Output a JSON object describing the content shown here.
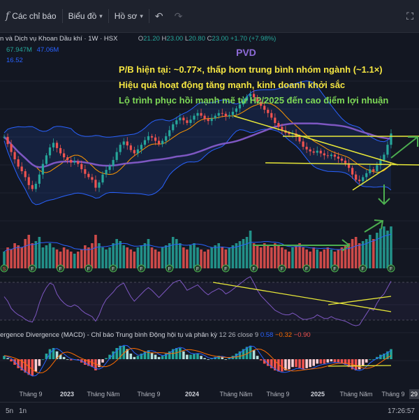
{
  "toolbar": {
    "indicators_label": "Các chỉ báo",
    "chart_type_label": "Biểu đồ",
    "profile_label": "Hồ sơ"
  },
  "legend": {
    "symbol_title": "n và Dịch vụ Khoan Dầu khí · 1W · HSX",
    "o_label": "O",
    "o_value": "21.20",
    "h_label": "H",
    "h_value": "23.00",
    "l_label": "L",
    "l_value": "20.80",
    "c_label": "C",
    "c_value": "23.00",
    "change": "+1.70 (+7.98%)",
    "vol_1": "67.947M",
    "vol_2": "47.06M",
    "ma_value": "16.52"
  },
  "annotations": {
    "ticker": "PVD",
    "line_1": "P/B hiện tại: ~0.77×, thấp hơn trung bình nhóm ngành (~1.1×)",
    "line_2": "Hiệu quả hoạt động tăng mạnh, kinh doanh khởi sắc",
    "line_3": "Lộ trình phục hồi mạnh mẽ từ H2/2025 đến cao điểm lợi nhuận"
  },
  "macd_legend": {
    "title": "ergence Divergence (MACD) - Chỉ báo Trung bình Động hội tụ và phân kỳ",
    "params": "12 26 close 9",
    "v1": "0.58",
    "v2": "−0.32",
    "v3": "−0.90"
  },
  "event_markers": [
    "S",
    "F",
    "F",
    "F",
    "F",
    "F",
    "F",
    "F",
    "F",
    "F",
    "F",
    "F",
    "F",
    "F",
    "F"
  ],
  "time_axis": [
    "Tháng 9",
    "2023",
    "Tháng Năm",
    "Tháng 9",
    "2024",
    "Tháng Năm",
    "Tháng 9",
    "2025",
    "Tháng Năm",
    "Tháng 9"
  ],
  "bottombar": {
    "range_5d": "5n",
    "range_1m": "1n",
    "clock": "17:26:57"
  },
  "price_tags": [
    "29"
  ],
  "colors": {
    "up": "#26a69a",
    "down": "#ef5350",
    "bb_line": "#2962ff",
    "bb_fill": "#1c3a7a",
    "ma_long": "#7e57c2",
    "ma_short": "#ff9800",
    "trend_line": "#e8e838",
    "green_arrow": "#4caf50",
    "ticker_color": "#8e6bd8",
    "text_yellow": "#f5e642",
    "text_green": "#7ed957"
  },
  "chart_data": {
    "type": "candlestick",
    "timeframe": "1W",
    "price_range": [
      10,
      32
    ],
    "close_series": [
      22.5,
      21.4,
      20.2,
      19.1,
      18.0,
      17.3,
      16.4,
      15.2,
      14.6,
      15.4,
      16.8,
      18.4,
      19.7,
      20.9,
      21.6,
      20.8,
      20.0,
      19.4,
      19.0,
      18.6,
      18.8,
      18.4,
      17.6,
      16.9,
      16.4,
      16.0,
      14.8,
      15.6,
      16.8,
      17.5,
      18.1,
      19.0,
      20.2,
      21.3,
      21.8,
      21.2,
      20.5,
      20.0,
      20.6,
      21.3,
      22.0,
      22.6,
      22.4,
      21.9,
      21.4,
      21.9,
      22.6,
      23.5,
      24.4,
      25.0,
      25.4,
      25.0,
      24.6,
      25.1,
      25.7,
      26.1,
      25.7,
      25.2,
      24.9,
      25.3,
      25.7,
      26.1,
      26.0,
      25.6,
      25.8,
      26.3,
      26.8,
      27.4,
      28.0,
      28.6,
      29.0,
      28.5,
      27.8,
      27.2,
      26.6,
      26.1,
      25.4,
      24.6,
      24.0,
      23.5,
      23.1,
      22.9,
      23.0,
      22.5,
      21.8,
      21.0,
      20.6,
      20.3,
      20.1,
      20.4,
      20.0,
      19.7,
      19.6,
      19.8,
      19.5,
      19.2,
      18.9,
      18.5,
      17.8,
      16.8,
      16.0,
      15.8,
      16.4,
      17.0,
      17.6,
      17.3,
      18.2,
      19.0,
      19.8,
      21.3,
      23.0
    ],
    "volume_series": [
      0.4,
      0.5,
      0.45,
      0.6,
      0.55,
      0.5,
      0.7,
      0.8,
      0.6,
      0.65,
      0.75,
      0.5,
      0.55,
      0.6,
      0.5,
      0.45,
      0.4,
      0.5,
      0.45,
      0.4,
      0.35,
      0.4,
      0.45,
      0.55,
      0.5,
      0.6,
      0.8,
      0.6,
      0.5,
      0.45,
      0.5,
      0.6,
      0.7,
      0.65,
      0.55,
      0.5,
      0.45,
      0.4,
      0.5,
      0.55,
      0.6,
      0.7,
      0.5,
      0.45,
      0.4,
      0.5,
      0.55,
      0.6,
      0.75,
      0.7,
      0.6,
      0.5,
      0.45,
      0.55,
      0.6,
      0.5,
      0.45,
      0.4,
      0.45,
      0.5,
      0.55,
      0.6,
      0.5,
      0.45,
      0.5,
      0.55,
      0.6,
      0.65,
      0.7,
      0.75,
      0.9,
      0.6,
      0.55,
      0.5,
      0.6,
      0.55,
      0.5,
      0.6,
      0.55,
      0.5,
      0.45,
      0.4,
      0.5,
      0.55,
      0.6,
      0.5,
      0.45,
      0.4,
      0.5,
      0.45,
      0.4,
      0.45,
      0.5,
      0.45,
      0.4,
      0.45,
      0.5,
      0.55,
      0.6,
      0.7,
      0.75,
      0.6,
      0.65,
      0.7,
      0.8,
      0.7,
      0.85,
      0.95,
      1.0,
      0.9,
      1.0
    ],
    "rsi_series": [
      55,
      50,
      42,
      38,
      35,
      33,
      30,
      28,
      27,
      35,
      48,
      58,
      65,
      70,
      68,
      58,
      52,
      48,
      45,
      44,
      46,
      44,
      40,
      37,
      35,
      33,
      28,
      35,
      45,
      52,
      56,
      60,
      65,
      68,
      70,
      62,
      55,
      50,
      54,
      58,
      62,
      65,
      62,
      58,
      54,
      58,
      62,
      66,
      70,
      72,
      73,
      68,
      62,
      64,
      66,
      68,
      64,
      60,
      57,
      60,
      62,
      64,
      62,
      58,
      60,
      63,
      66,
      69,
      72,
      75,
      77,
      70,
      62,
      56,
      52,
      48,
      44,
      40,
      38,
      36,
      35,
      35,
      37,
      35,
      32,
      30,
      30,
      31,
      32,
      35,
      33,
      31,
      31,
      33,
      31,
      30,
      29,
      28,
      26,
      24,
      23,
      24,
      30,
      36,
      42,
      40,
      48,
      54,
      58,
      65,
      72
    ],
    "macd_hist": [
      0.3,
      0.1,
      -0.2,
      -0.5,
      -0.8,
      -1.0,
      -1.2,
      -1.4,
      -1.5,
      -1.1,
      -0.6,
      0.0,
      0.5,
      0.9,
      1.0,
      0.7,
      0.4,
      0.2,
      0.0,
      -0.1,
      0.0,
      -0.1,
      -0.3,
      -0.5,
      -0.6,
      -0.7,
      -1.0,
      -0.7,
      -0.3,
      0.1,
      0.4,
      0.7,
      1.0,
      1.2,
      1.2,
      0.9,
      0.5,
      0.2,
      0.3,
      0.5,
      0.7,
      0.8,
      0.6,
      0.4,
      0.2,
      0.3,
      0.5,
      0.7,
      0.9,
      1.0,
      1.0,
      0.7,
      0.4,
      0.4,
      0.5,
      0.5,
      0.3,
      0.1,
      0.0,
      0.1,
      0.2,
      0.3,
      0.2,
      0.0,
      0.1,
      0.3,
      0.5,
      0.7,
      0.9,
      1.1,
      1.2,
      0.8,
      0.3,
      -0.1,
      -0.4,
      -0.6,
      -0.8,
      -1.0,
      -1.1,
      -1.1,
      -1.0,
      -0.9,
      -0.7,
      -0.7,
      -0.8,
      -0.9,
      -0.8,
      -0.7,
      -0.6,
      -0.4,
      -0.4,
      -0.4,
      -0.3,
      -0.2,
      -0.3,
      -0.3,
      -0.4,
      -0.5,
      -0.7,
      -0.9,
      -1.0,
      -0.9,
      -0.6,
      -0.3,
      0.0,
      0.0,
      0.2,
      0.4,
      0.5,
      0.7,
      0.9
    ]
  }
}
